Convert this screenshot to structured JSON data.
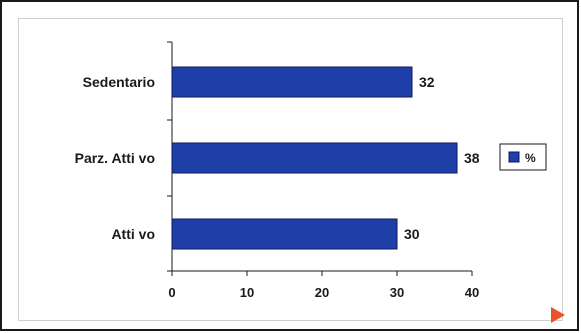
{
  "chart_data": {
    "type": "bar",
    "orientation": "horizontal",
    "categories": [
      "Sedentario",
      "Parz. Atti vo",
      "Atti vo"
    ],
    "series": [
      {
        "name": "%",
        "values": [
          32,
          38,
          30
        ]
      }
    ],
    "data_labels": [
      "32",
      "38",
      "30"
    ],
    "xlim": [
      0,
      40
    ],
    "xticks": [
      0,
      10,
      20,
      30,
      40
    ],
    "xtick_labels": [
      "0",
      "10",
      "20",
      "30",
      "40"
    ],
    "legend": {
      "position": "right",
      "entries": [
        "%"
      ]
    },
    "grid": false,
    "colors": {
      "bar": "#1f3ea8",
      "bar_edge": "#0b1a5c",
      "accent_triangle": "#e8542a"
    }
  }
}
